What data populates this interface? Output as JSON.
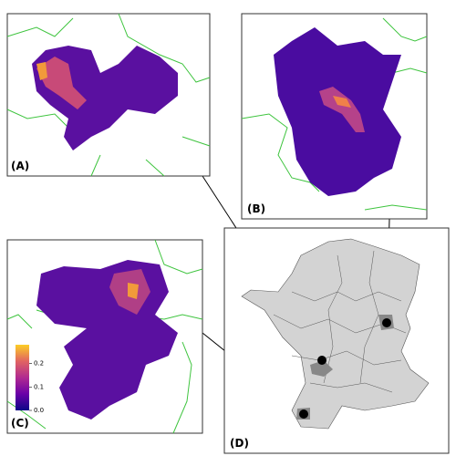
{
  "panels": [
    {
      "label": "(A)"
    },
    {
      "label": "(B)"
    },
    {
      "label": "(C)"
    },
    {
      "label": "(D)"
    }
  ],
  "colorbar": {
    "lim": [
      0,
      0.28
    ],
    "ticks": [
      {
        "value": 0,
        "label": "0.0"
      },
      0.1,
      0.2
    ]
  }
}
